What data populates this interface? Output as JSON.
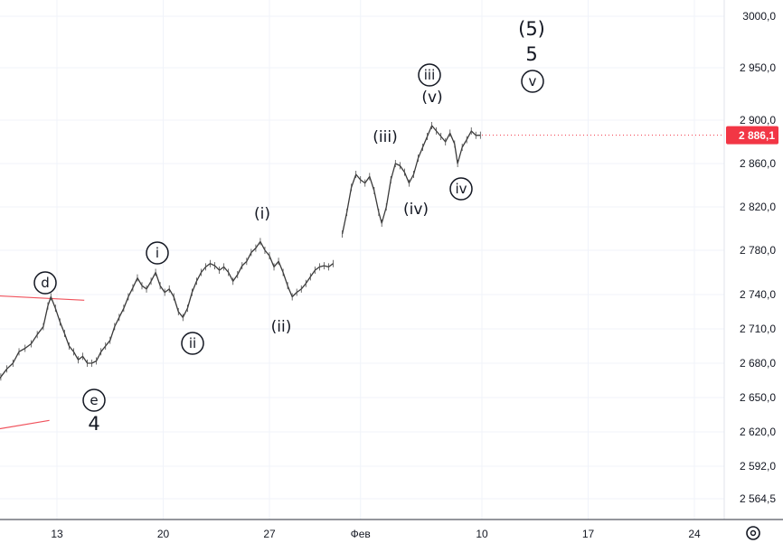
{
  "chart_data": {
    "type": "line",
    "title": "",
    "xlabel": "",
    "ylabel": "",
    "ylim_note": "price scale is non-linear (logarithmic-like)",
    "y_ticks": [
      {
        "value": 3000.0,
        "label": "3000,0"
      },
      {
        "value": 2950.0,
        "label": "2 950,0"
      },
      {
        "value": 2900.0,
        "label": "2 900,0"
      },
      {
        "value": 2860.0,
        "label": "2 860,0"
      },
      {
        "value": 2820.0,
        "label": "2 820,0"
      },
      {
        "value": 2780.0,
        "label": "2 780,0"
      },
      {
        "value": 2740.0,
        "label": "2 740,0"
      },
      {
        "value": 2710.0,
        "label": "2 710,0"
      },
      {
        "value": 2680.0,
        "label": "2 680,0"
      },
      {
        "value": 2650.0,
        "label": "2 650,0"
      },
      {
        "value": 2620.0,
        "label": "2 620,0"
      },
      {
        "value": 2592.0,
        "label": "2 592,0"
      },
      {
        "value": 2564.5,
        "label": "2 564,5"
      }
    ],
    "x_ticks": [
      {
        "day": 13,
        "label": "13"
      },
      {
        "day": 20,
        "label": "20"
      },
      {
        "day": 27,
        "label": "27"
      },
      {
        "day": 33,
        "label": "Фев"
      },
      {
        "day": 41,
        "label": "10"
      },
      {
        "day": 48,
        "label": "17"
      },
      {
        "day": 55,
        "label": "24"
      }
    ],
    "last_price": {
      "value": 2886.1,
      "label": "2 886,1",
      "color": "#f23645"
    },
    "series": [
      {
        "color": "#3a3a3a",
        "points": [
          [
            8.9,
            2662
          ],
          [
            9.3,
            2668
          ],
          [
            9.7,
            2675
          ],
          [
            10.1,
            2680
          ],
          [
            10.5,
            2690
          ],
          [
            10.9,
            2693
          ],
          [
            11.3,
            2697
          ],
          [
            11.7,
            2705
          ],
          [
            12.1,
            2712
          ],
          [
            12.4,
            2730
          ],
          [
            12.6,
            2738
          ],
          [
            12.9,
            2728
          ],
          [
            13.2,
            2716
          ],
          [
            13.5,
            2706
          ],
          [
            13.8,
            2695
          ],
          [
            14.1,
            2690
          ],
          [
            14.4,
            2683
          ],
          [
            14.7,
            2686
          ],
          [
            15.0,
            2680
          ],
          [
            15.3,
            2680
          ],
          [
            15.6,
            2682
          ],
          [
            15.9,
            2690
          ],
          [
            16.2,
            2695
          ],
          [
            16.5,
            2700
          ],
          [
            16.8,
            2712
          ],
          [
            17.1,
            2720
          ],
          [
            17.4,
            2728
          ],
          [
            17.7,
            2738
          ],
          [
            18.0,
            2746
          ],
          [
            18.3,
            2755
          ],
          [
            18.6,
            2748
          ],
          [
            18.9,
            2745
          ],
          [
            19.2,
            2752
          ],
          [
            19.5,
            2760
          ],
          [
            19.8,
            2748
          ],
          [
            20.1,
            2742
          ],
          [
            20.4,
            2745
          ],
          [
            20.7,
            2738
          ],
          [
            21.0,
            2725
          ],
          [
            21.3,
            2720
          ],
          [
            21.6,
            2728
          ],
          [
            21.9,
            2742
          ],
          [
            22.2,
            2752
          ],
          [
            22.5,
            2760
          ],
          [
            22.8,
            2765
          ],
          [
            23.1,
            2768
          ],
          [
            23.4,
            2766
          ],
          [
            23.7,
            2762
          ],
          [
            24.0,
            2765
          ],
          [
            24.3,
            2760
          ],
          [
            24.6,
            2752
          ],
          [
            24.9,
            2758
          ],
          [
            25.2,
            2766
          ],
          [
            25.5,
            2770
          ],
          [
            25.8,
            2778
          ],
          [
            26.1,
            2782
          ],
          [
            26.4,
            2788
          ],
          [
            26.7,
            2780
          ],
          [
            27.0,
            2775
          ],
          [
            27.3,
            2765
          ],
          [
            27.6,
            2770
          ],
          [
            27.9,
            2760
          ],
          [
            28.2,
            2748
          ],
          [
            28.5,
            2738
          ],
          [
            28.8,
            2742
          ],
          [
            29.1,
            2745
          ],
          [
            29.4,
            2750
          ],
          [
            29.7,
            2756
          ],
          [
            30.0,
            2762
          ],
          [
            30.3,
            2765
          ],
          [
            30.6,
            2766
          ],
          [
            30.9,
            2765
          ],
          [
            31.2,
            2768
          ],
          [
            31.8,
            2795
          ],
          [
            32.1,
            2815
          ],
          [
            32.4,
            2838
          ],
          [
            32.7,
            2850
          ],
          [
            33.0,
            2845
          ],
          [
            33.3,
            2842
          ],
          [
            33.6,
            2848
          ],
          [
            33.9,
            2835
          ],
          [
            34.2,
            2815
          ],
          [
            34.4,
            2805
          ],
          [
            34.7,
            2820
          ],
          [
            35.0,
            2845
          ],
          [
            35.3,
            2860
          ],
          [
            35.6,
            2858
          ],
          [
            35.9,
            2852
          ],
          [
            36.2,
            2842
          ],
          [
            36.5,
            2850
          ],
          [
            36.8,
            2865
          ],
          [
            37.1,
            2875
          ],
          [
            37.4,
            2885
          ],
          [
            37.7,
            2895
          ],
          [
            38.0,
            2890
          ],
          [
            38.3,
            2885
          ],
          [
            38.6,
            2880
          ],
          [
            38.9,
            2888
          ],
          [
            39.2,
            2878
          ],
          [
            39.4,
            2860
          ],
          [
            39.7,
            2875
          ],
          [
            40.0,
            2882
          ],
          [
            40.3,
            2890
          ],
          [
            40.6,
            2886
          ],
          [
            40.9,
            2886.1
          ]
        ]
      }
    ],
    "wave_labels": [
      {
        "text": "d",
        "circled": true
      },
      {
        "text": "e",
        "circled": true
      },
      {
        "text": "4",
        "circled": false
      },
      {
        "text": "i",
        "circled": true
      },
      {
        "text": "ii",
        "circled": true
      },
      {
        "text": "(i)",
        "circled": false
      },
      {
        "text": "(ii)",
        "circled": false
      },
      {
        "text": "(iii)",
        "circled": false
      },
      {
        "text": "(iv)",
        "circled": false
      },
      {
        "text": "iii",
        "circled": true
      },
      {
        "text": "(v)",
        "circled": false
      },
      {
        "text": "iv",
        "circled": true
      },
      {
        "text": "(5)",
        "circled": false
      },
      {
        "text": "5",
        "circled": false
      },
      {
        "text": "v",
        "circled": true
      }
    ],
    "trendline_color": "#f0525c",
    "settings_icon": "gear-icon"
  }
}
